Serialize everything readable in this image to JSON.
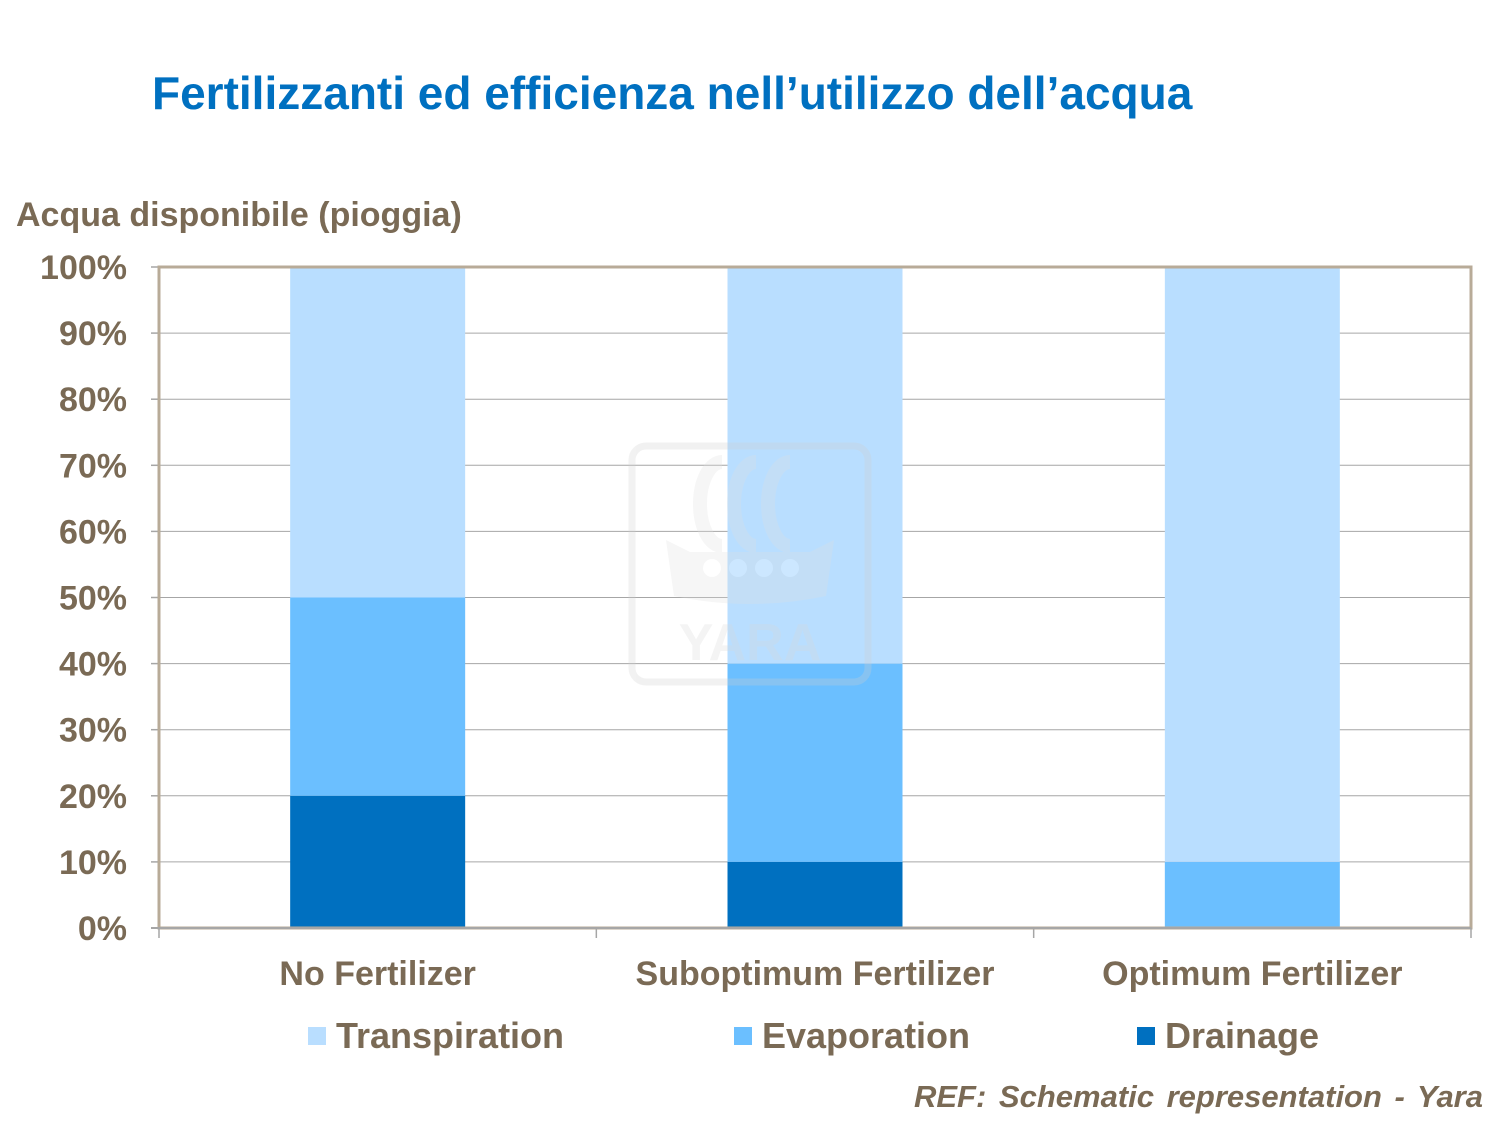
{
  "title": "Fertilizzanti ed efficienza nell’utilizzo dell’acqua",
  "reference": "REF: Schematic representation - Yara",
  "watermark_text": "YARA",
  "chart_data": {
    "type": "bar",
    "stacked": true,
    "ylabel": "Acqua disponibile (pioggia)",
    "ylim": [
      0,
      100
    ],
    "yticks": [
      "0%",
      "10%",
      "20%",
      "30%",
      "40%",
      "50%",
      "60%",
      "70%",
      "80%",
      "90%",
      "100%"
    ],
    "grid": true,
    "legend_position": "bottom",
    "categories": [
      "No Fertilizer",
      "Suboptimum Fertilizer",
      "Optimum Fertilizer"
    ],
    "series": [
      {
        "name": "Drainage",
        "values": [
          20,
          10,
          0
        ],
        "color": "#0070c0"
      },
      {
        "name": "Evaporation",
        "values": [
          30,
          30,
          10
        ],
        "color": "#6bbfff"
      },
      {
        "name": "Transpiration",
        "values": [
          50,
          60,
          90
        ],
        "color": "#b9deff"
      }
    ],
    "legend_order": [
      "Transpiration",
      "Evaporation",
      "Drainage"
    ]
  }
}
